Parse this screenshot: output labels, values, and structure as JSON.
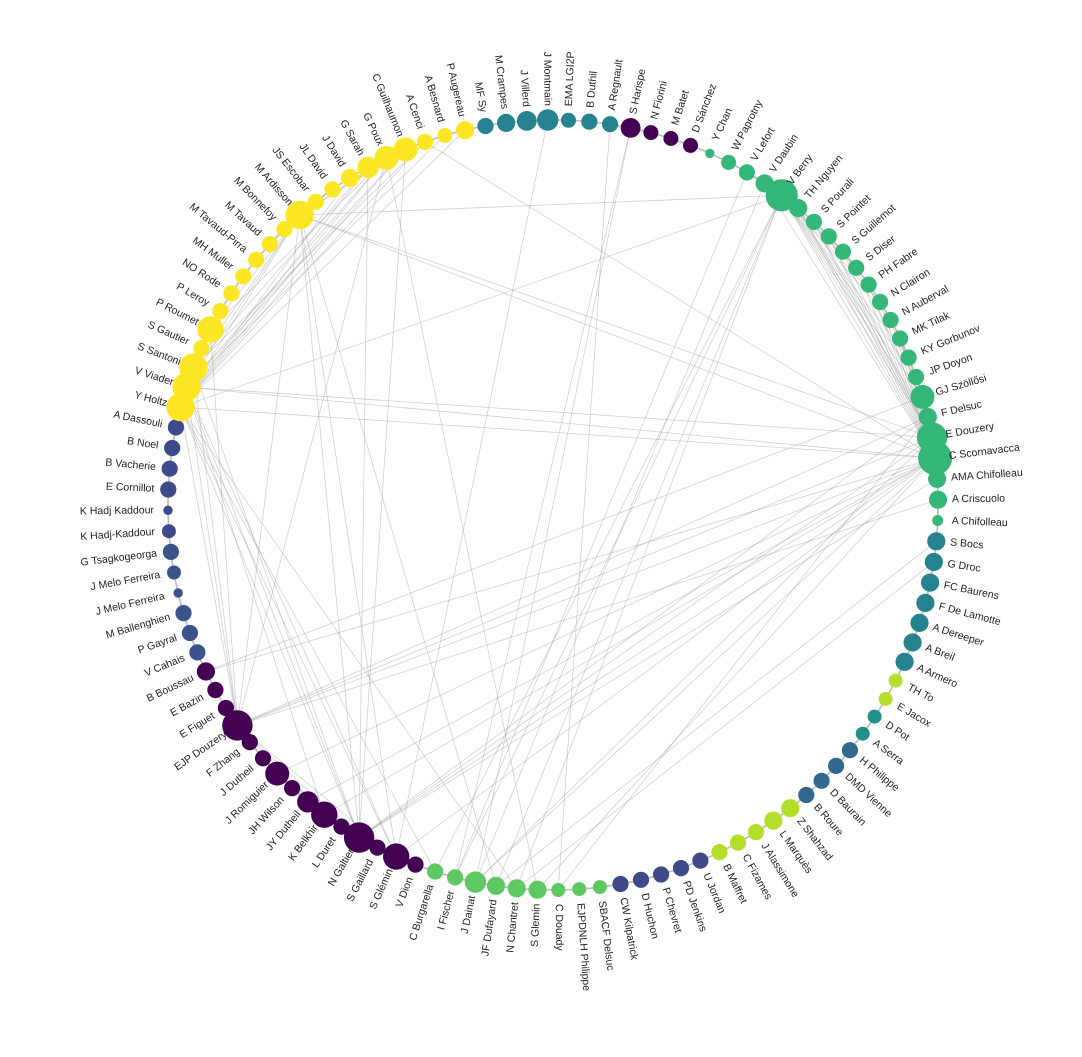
{
  "group_colors": [
    "#fde725",
    "#3e4a89",
    "#482878",
    "#5ec962",
    "#3b528b",
    "#b5de2b",
    "#21918c",
    "#35b779",
    "#31688e",
    "#440154",
    "#26828e"
  ],
  "nodes": [
    {
      "label": "C Scornavacca",
      "group": 7,
      "weight": 9
    },
    {
      "label": "AMA Chifolleau",
      "group": 7,
      "weight": 2
    },
    {
      "label": "A Criscuolo",
      "group": 7,
      "weight": 2
    },
    {
      "label": "A Chifolleau",
      "group": 7,
      "weight": 0.5
    },
    {
      "label": "S Bocs",
      "group": 10,
      "weight": 2
    },
    {
      "label": "G Droc",
      "group": 10,
      "weight": 2
    },
    {
      "label": "FC Baurens",
      "group": 10,
      "weight": 2
    },
    {
      "label": "F De Lamotte",
      "group": 10,
      "weight": 2
    },
    {
      "label": "A Dereeper",
      "group": 10,
      "weight": 2
    },
    {
      "label": "A Breil",
      "group": 10,
      "weight": 2
    },
    {
      "label": "A Armero",
      "group": 10,
      "weight": 2
    },
    {
      "label": "TH To",
      "group": 5,
      "weight": 1
    },
    {
      "label": "E Jacox",
      "group": 5,
      "weight": 1
    },
    {
      "label": "D Pot",
      "group": 6,
      "weight": 1
    },
    {
      "label": "A Serra",
      "group": 6,
      "weight": 1
    },
    {
      "label": "H Philippe",
      "group": 8,
      "weight": 1.5
    },
    {
      "label": "DMD Vienne",
      "group": 8,
      "weight": 1.5
    },
    {
      "label": "D Baurain",
      "group": 8,
      "weight": 1.5
    },
    {
      "label": "B Roure",
      "group": 8,
      "weight": 1.5
    },
    {
      "label": "Z Shahzad",
      "group": 5,
      "weight": 2
    },
    {
      "label": "L Marquès",
      "group": 5,
      "weight": 2
    },
    {
      "label": "J Alassimone",
      "group": 5,
      "weight": 1.5
    },
    {
      "label": "C Fizames",
      "group": 5,
      "weight": 1.5
    },
    {
      "label": "B Maffret",
      "group": 5,
      "weight": 1.5
    },
    {
      "label": "U Jordan",
      "group": 1,
      "weight": 1.5
    },
    {
      "label": "PD Jenkins",
      "group": 1,
      "weight": 1.5
    },
    {
      "label": "P Chevret",
      "group": 1,
      "weight": 1.5
    },
    {
      "label": "D Huchon",
      "group": 1,
      "weight": 1.5
    },
    {
      "label": "CW Kilpatrick",
      "group": 1,
      "weight": 1.5
    },
    {
      "label": "SBACF Delsuc",
      "group": 3,
      "weight": 1
    },
    {
      "label": "EJPDNLH Philippe",
      "group": 3,
      "weight": 1
    },
    {
      "label": "C Douady",
      "group": 3,
      "weight": 1
    },
    {
      "label": "S Glemin",
      "group": 3,
      "weight": 2
    },
    {
      "label": "N Chantret",
      "group": 3,
      "weight": 2
    },
    {
      "label": "JF Dufayard",
      "group": 3,
      "weight": 2
    },
    {
      "label": "J Dainat",
      "group": 3,
      "weight": 3
    },
    {
      "label": "I Fischer",
      "group": 3,
      "weight": 1.5
    },
    {
      "label": "C Burgarella",
      "group": 3,
      "weight": 1.5
    },
    {
      "label": "V Dion",
      "group": 9,
      "weight": 1.5
    },
    {
      "label": "S Glémin",
      "group": 9,
      "weight": 5
    },
    {
      "label": "S Gaillard",
      "group": 9,
      "weight": 1.5
    },
    {
      "label": "N Galtier",
      "group": 9,
      "weight": 7
    },
    {
      "label": "L Duret",
      "group": 9,
      "weight": 1.5
    },
    {
      "label": "K Belkhir",
      "group": 9,
      "weight": 5
    },
    {
      "label": "JY Dutheil",
      "group": 9,
      "weight": 3
    },
    {
      "label": "JH Wilson",
      "group": 9,
      "weight": 1.5
    },
    {
      "label": "J Romiguier",
      "group": 9,
      "weight": 4
    },
    {
      "label": "J Dutheil",
      "group": 9,
      "weight": 1.5
    },
    {
      "label": "F Zhang",
      "group": 9,
      "weight": 1.5
    },
    {
      "label": "EJP Douzery",
      "group": 9,
      "weight": 7
    },
    {
      "label": "E Figuet",
      "group": 9,
      "weight": 1.5
    },
    {
      "label": "E Bazin",
      "group": 9,
      "weight": 1.5
    },
    {
      "label": "B Boussau",
      "group": 9,
      "weight": 2
    },
    {
      "label": "V Cahais",
      "group": 4,
      "weight": 1.5
    },
    {
      "label": "P Gayral",
      "group": 4,
      "weight": 1.5
    },
    {
      "label": "M Ballenghien",
      "group": 4,
      "weight": 1.5
    },
    {
      "label": "J Melo Ferreira",
      "group": 4,
      "weight": 0.3
    },
    {
      "label": "J Melo Ferreira",
      "group": 4,
      "weight": 1
    },
    {
      "label": "G Tsagkogeorga",
      "group": 4,
      "weight": 1.5
    },
    {
      "label": "K Hadj-Kaddour",
      "group": 1,
      "weight": 1
    },
    {
      "label": "K Hadj Kaddour",
      "group": 1,
      "weight": 0.3
    },
    {
      "label": "E Cornillot",
      "group": 1,
      "weight": 1.5
    },
    {
      "label": "B Vacherie",
      "group": 1,
      "weight": 1.5
    },
    {
      "label": "B Noel",
      "group": 1,
      "weight": 1.5
    },
    {
      "label": "A Dassouli",
      "group": 1,
      "weight": 1.5
    },
    {
      "label": "Y Holtz",
      "group": 0,
      "weight": 6
    },
    {
      "label": "V Viader",
      "group": 0,
      "weight": 6
    },
    {
      "label": "S Santoni",
      "group": 0,
      "weight": 6
    },
    {
      "label": "S Gautier",
      "group": 0,
      "weight": 1.5
    },
    {
      "label": "P Roumet",
      "group": 0,
      "weight": 5
    },
    {
      "label": "P Leroy",
      "group": 0,
      "weight": 1.5
    },
    {
      "label": "NO Rode",
      "group": 0,
      "weight": 1.5
    },
    {
      "label": "MH Muller",
      "group": 0,
      "weight": 1.5
    },
    {
      "label": "M Tavaud-Pirra",
      "group": 0,
      "weight": 1.5
    },
    {
      "label": "M Tavaud",
      "group": 0,
      "weight": 1.5
    },
    {
      "label": "M Bonnefoy",
      "group": 0,
      "weight": 1.5
    },
    {
      "label": "M Ardisson",
      "group": 0,
      "weight": 6
    },
    {
      "label": "JS Escobar",
      "group": 0,
      "weight": 1.5
    },
    {
      "label": "JL David",
      "group": 0,
      "weight": 1.5
    },
    {
      "label": "J David",
      "group": 0,
      "weight": 2
    },
    {
      "label": "G Sarah",
      "group": 0,
      "weight": 3
    },
    {
      "label": "G Poux",
      "group": 0,
      "weight": 4
    },
    {
      "label": "C Guilhaumon",
      "group": 0,
      "weight": 4
    },
    {
      "label": "A Cenci",
      "group": 0,
      "weight": 1.5
    },
    {
      "label": "A Besnard",
      "group": 0,
      "weight": 1.2
    },
    {
      "label": "P Augereau",
      "group": 0,
      "weight": 2
    },
    {
      "label": "MF Sy",
      "group": 10,
      "weight": 1.5
    },
    {
      "label": "M Crampes",
      "group": 10,
      "weight": 2
    },
    {
      "label": "J Villerd",
      "group": 10,
      "weight": 2.5
    },
    {
      "label": "J Montmain",
      "group": 10,
      "weight": 3
    },
    {
      "label": "EMA LGI2P",
      "group": 10,
      "weight": 1.2
    },
    {
      "label": "B Duthil",
      "group": 10,
      "weight": 1.5
    },
    {
      "label": "A Regnault",
      "group": 10,
      "weight": 1.5
    },
    {
      "label": "S Harispe",
      "group": 9,
      "weight": 2.5
    },
    {
      "label": "N Fiorini",
      "group": 9,
      "weight": 1.2
    },
    {
      "label": "M Batet",
      "group": 9,
      "weight": 1.2
    },
    {
      "label": "D Sánchez",
      "group": 9,
      "weight": 1.2
    },
    {
      "label": "Y Chan",
      "group": 7,
      "weight": 0.3
    },
    {
      "label": "W Paprotny",
      "group": 7,
      "weight": 1.2
    },
    {
      "label": "V Lefort",
      "group": 7,
      "weight": 1.5
    },
    {
      "label": "V Daubin",
      "group": 7,
      "weight": 2
    },
    {
      "label": "V Berry",
      "group": 7,
      "weight": 8
    },
    {
      "label": "TH Nguyen",
      "group": 7,
      "weight": 2
    },
    {
      "label": "S Pourali",
      "group": 7,
      "weight": 1.5
    },
    {
      "label": "S Pointet",
      "group": 7,
      "weight": 1.5
    },
    {
      "label": "S Guillemot",
      "group": 7,
      "weight": 1.5
    },
    {
      "label": "S Diser",
      "group": 7,
      "weight": 1.5
    },
    {
      "label": "PH Fabre",
      "group": 7,
      "weight": 1.5
    },
    {
      "label": "N Clairon",
      "group": 7,
      "weight": 1.5
    },
    {
      "label": "N Auberval",
      "group": 7,
      "weight": 1.5
    },
    {
      "label": "MK Tilak",
      "group": 7,
      "weight": 1.5
    },
    {
      "label": "KY Gorbunov",
      "group": 7,
      "weight": 1.5
    },
    {
      "label": "JP Doyon",
      "group": 7,
      "weight": 1.5
    },
    {
      "label": "GJ Szöllősi",
      "group": 7,
      "weight": 4
    },
    {
      "label": "F Delsuc",
      "group": 7,
      "weight": 2
    },
    {
      "label": "E Douzery",
      "group": 7,
      "weight": 7
    }
  ],
  "edges": [
    [
      "C Scornavacca",
      "V Berry"
    ],
    [
      "C Scornavacca",
      "V Daubin"
    ],
    [
      "C Scornavacca",
      "TH Nguyen"
    ],
    [
      "C Scornavacca",
      "S Pourali"
    ],
    [
      "C Scornavacca",
      "S Pointet"
    ],
    [
      "C Scornavacca",
      "S Guillemot"
    ],
    [
      "C Scornavacca",
      "S Diser"
    ],
    [
      "C Scornavacca",
      "PH Fabre"
    ],
    [
      "C Scornavacca",
      "N Clairon"
    ],
    [
      "C Scornavacca",
      "N Auberval"
    ],
    [
      "C Scornavacca",
      "MK Tilak"
    ],
    [
      "C Scornavacca",
      "KY Gorbunov"
    ],
    [
      "C Scornavacca",
      "JP Doyon"
    ],
    [
      "C Scornavacca",
      "GJ Szöllősi"
    ],
    [
      "C Scornavacca",
      "F Delsuc"
    ],
    [
      "C Scornavacca",
      "E Douzery"
    ],
    [
      "E Douzery",
      "V Berry"
    ],
    [
      "E Douzery",
      "TH Nguyen"
    ],
    [
      "E Douzery",
      "S Pourali"
    ],
    [
      "E Douzery",
      "S Pointet"
    ],
    [
      "E Douzery",
      "PH Fabre"
    ],
    [
      "E Douzery",
      "F Delsuc"
    ],
    [
      "E Douzery",
      "GJ Szöllősi"
    ],
    [
      "E Douzery",
      "MK Tilak"
    ],
    [
      "V Berry",
      "S Guillemot"
    ],
    [
      "V Berry",
      "S Diser"
    ],
    [
      "V Berry",
      "N Clairon"
    ],
    [
      "V Berry",
      "JP Doyon"
    ],
    [
      "V Berry",
      "KY Gorbunov"
    ],
    [
      "V Berry",
      "GJ Szöllősi"
    ],
    [
      "V Berry",
      "F Delsuc"
    ],
    [
      "V Berry",
      "V Lefort"
    ],
    [
      "V Berry",
      "V Daubin"
    ],
    [
      "V Berry",
      "N Auberval"
    ],
    [
      "V Berry",
      "C Burgarella"
    ],
    [
      "V Berry",
      "JF Dufayard"
    ],
    [
      "V Berry",
      "I Fischer"
    ],
    [
      "V Berry",
      "N Chantret"
    ],
    [
      "V Daubin",
      "J Dainat"
    ],
    [
      "V Lefort",
      "I Fischer"
    ],
    [
      "C Scornavacca",
      "EJP Douzery"
    ],
    [
      "C Scornavacca",
      "N Galtier"
    ],
    [
      "C Scornavacca",
      "J Romiguier"
    ],
    [
      "C Scornavacca",
      "K Belkhir"
    ],
    [
      "C Scornavacca",
      "JY Dutheil"
    ],
    [
      "C Scornavacca",
      "S Glemin"
    ],
    [
      "C Scornavacca",
      "J Dainat"
    ],
    [
      "C Scornavacca",
      "S Glémin"
    ],
    [
      "C Scornavacca",
      "Y Holtz"
    ],
    [
      "C Scornavacca",
      "M Ardisson"
    ],
    [
      "C Scornavacca",
      "B Boussau"
    ],
    [
      "E Douzery",
      "EJP Douzery"
    ],
    [
      "E Douzery",
      "N Galtier"
    ],
    [
      "E Douzery",
      "V Viader"
    ],
    [
      "E Douzery",
      "M Ardisson"
    ],
    [
      "F Delsuc",
      "EJP Douzery"
    ],
    [
      "F Delsuc",
      "N Galtier"
    ],
    [
      "AMA Chifolleau",
      "N Galtier"
    ],
    [
      "A Criscuolo",
      "EJP Douzery"
    ],
    [
      "GJ Szöllősi",
      "B Boussau"
    ],
    [
      "S Bocs",
      "JF Dufayard"
    ],
    [
      "G Droc",
      "N Chantret"
    ],
    [
      "S Harispe",
      "J Dainat"
    ],
    [
      "EJP Douzery",
      "N Galtier"
    ],
    [
      "EJP Douzery",
      "K Belkhir"
    ],
    [
      "EJP Douzery",
      "J Romiguier"
    ],
    [
      "EJP Douzery",
      "S Glémin"
    ],
    [
      "EJP Douzery",
      "V Viader"
    ],
    [
      "EJP Douzery",
      "Y Holtz"
    ],
    [
      "EJP Douzery",
      "S Santoni"
    ],
    [
      "EJP Douzery",
      "P Roumet"
    ],
    [
      "EJP Douzery",
      "G Poux"
    ],
    [
      "EJP Douzery",
      "M Ardisson"
    ],
    [
      "N Galtier",
      "K Belkhir"
    ],
    [
      "N Galtier",
      "J Romiguier"
    ],
    [
      "N Galtier",
      "S Glémin"
    ],
    [
      "N Galtier",
      "JY Dutheil"
    ],
    [
      "N Galtier",
      "Y Holtz"
    ],
    [
      "N Galtier",
      "V Viader"
    ],
    [
      "N Galtier",
      "S Santoni"
    ],
    [
      "N Galtier",
      "G Sarah"
    ],
    [
      "N Galtier",
      "M Ardisson"
    ],
    [
      "N Galtier",
      "C Guilhaumon"
    ],
    [
      "S Glémin",
      "Y Holtz"
    ],
    [
      "S Glémin",
      "M Ardisson"
    ],
    [
      "S Glémin",
      "V Viader"
    ],
    [
      "S Glémin",
      "J Romiguier"
    ],
    [
      "K Belkhir",
      "J Romiguier"
    ],
    [
      "K Belkhir",
      "V Viader"
    ],
    [
      "J Romiguier",
      "JY Dutheil"
    ],
    [
      "Y Holtz",
      "V Viader"
    ],
    [
      "Y Holtz",
      "S Santoni"
    ],
    [
      "Y Holtz",
      "P Roumet"
    ],
    [
      "Y Holtz",
      "M Ardisson"
    ],
    [
      "Y Holtz",
      "G Sarah"
    ],
    [
      "Y Holtz",
      "G Poux"
    ],
    [
      "Y Holtz",
      "C Guilhaumon"
    ],
    [
      "Y Holtz",
      "A Cenci"
    ],
    [
      "Y Holtz",
      "P Augereau"
    ],
    [
      "Y Holtz",
      "J David"
    ],
    [
      "V Viader",
      "S Santoni"
    ],
    [
      "V Viader",
      "P Roumet"
    ],
    [
      "V Viader",
      "M Ardisson"
    ],
    [
      "V Viader",
      "G Poux"
    ],
    [
      "V Viader",
      "C Guilhaumon"
    ],
    [
      "V Viader",
      "A Besnard"
    ],
    [
      "S Santoni",
      "M Ardisson"
    ],
    [
      "S Santoni",
      "G Sarah"
    ],
    [
      "S Santoni",
      "A Cenci"
    ],
    [
      "P Roumet",
      "M Ardisson"
    ],
    [
      "P Roumet",
      "G Poux"
    ],
    [
      "M Ardisson",
      "G Poux"
    ],
    [
      "M Ardisson",
      "C Guilhaumon"
    ],
    [
      "Y Holtz",
      "V Berry"
    ],
    [
      "V Viader",
      "C Scornavacca"
    ],
    [
      "M Ardisson",
      "V Berry"
    ],
    [
      "A Cenci",
      "C Scornavacca"
    ],
    [
      "Y Holtz",
      "C Burgarella"
    ],
    [
      "Y Holtz",
      "N Chantret"
    ],
    [
      "G Poux",
      "S Glemin"
    ],
    [
      "M Ardisson",
      "JF Dufayard"
    ],
    [
      "J Montmain",
      "S Glémin"
    ],
    [
      "A Regnault",
      "C Douady"
    ],
    [
      "S Harispe",
      "I Fischer"
    ],
    [
      "E Douzery",
      "J Dainat"
    ],
    [
      "F Delsuc",
      "C Douady"
    ]
  ]
}
